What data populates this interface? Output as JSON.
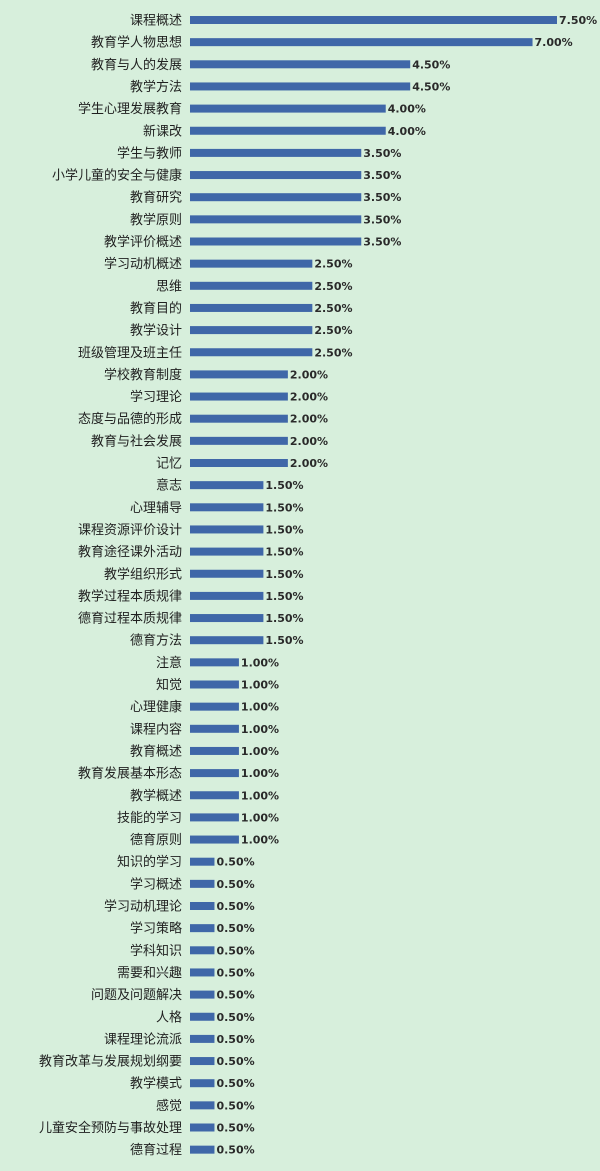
{
  "chart_data": {
    "type": "bar",
    "orientation": "horizontal",
    "title": "",
    "xlabel": "",
    "ylabel": "",
    "categories": [
      "课程概述",
      "教育学人物思想",
      "教育与人的发展",
      "教学方法",
      "学生心理发展教育",
      "新课改",
      "学生与教师",
      "小学儿童的安全与健康",
      "教育研究",
      "教学原则",
      "教学评价概述",
      "学习动机概述",
      "思维",
      "教育目的",
      "教学设计",
      "班级管理及班主任",
      "学校教育制度",
      "学习理论",
      "态度与品德的形成",
      "教育与社会发展",
      "记忆",
      "意志",
      "心理辅导",
      "课程资源评价设计",
      "教育途径课外活动",
      "教学组织形式",
      "教学过程本质规律",
      "德育过程本质规律",
      "德育方法",
      "注意",
      "知觉",
      "心理健康",
      "课程内容",
      "教育概述",
      "教育发展基本形态",
      "教学概述",
      "技能的学习",
      "德育原则",
      "知识的学习",
      "学习概述",
      "学习动机理论",
      "学习策略",
      "学科知识",
      "需要和兴趣",
      "问题及问题解决",
      "人格",
      "课程理论流派",
      "教育改革与发展规划纲要",
      "教学模式",
      "感觉",
      "儿童安全预防与事故处理",
      "德育过程"
    ],
    "values": [
      7.5,
      7.0,
      4.5,
      4.5,
      4.0,
      4.0,
      3.5,
      3.5,
      3.5,
      3.5,
      3.5,
      2.5,
      2.5,
      2.5,
      2.5,
      2.5,
      2.0,
      2.0,
      2.0,
      2.0,
      2.0,
      1.5,
      1.5,
      1.5,
      1.5,
      1.5,
      1.5,
      1.5,
      1.5,
      1.0,
      1.0,
      1.0,
      1.0,
      1.0,
      1.0,
      1.0,
      1.0,
      1.0,
      0.5,
      0.5,
      0.5,
      0.5,
      0.5,
      0.5,
      0.5,
      0.5,
      0.5,
      0.5,
      0.5,
      0.5,
      0.5,
      0.5
    ],
    "value_labels": [
      "7.50%",
      "7.00%",
      "4.50%",
      "4.50%",
      "4.00%",
      "4.00%",
      "3.50%",
      "3.50%",
      "3.50%",
      "3.50%",
      "3.50%",
      "2.50%",
      "2.50%",
      "2.50%",
      "2.50%",
      "2.50%",
      "2.00%",
      "2.00%",
      "2.00%",
      "2.00%",
      "2.00%",
      "1.50%",
      "1.50%",
      "1.50%",
      "1.50%",
      "1.50%",
      "1.50%",
      "1.50%",
      "1.50%",
      "1.00%",
      "1.00%",
      "1.00%",
      "1.00%",
      "1.00%",
      "1.00%",
      "1.00%",
      "1.00%",
      "1.00%",
      "0.50%",
      "0.50%",
      "0.50%",
      "0.50%",
      "0.50%",
      "0.50%",
      "0.50%",
      "0.50%",
      "0.50%",
      "0.50%",
      "0.50%",
      "0.50%",
      "0.50%",
      "0.50%"
    ],
    "unit": "%",
    "xlim": [
      0,
      7.5
    ],
    "grid": false,
    "legend": "none",
    "bar_color": "#3f67a8",
    "background_color": "#d7efdc"
  }
}
